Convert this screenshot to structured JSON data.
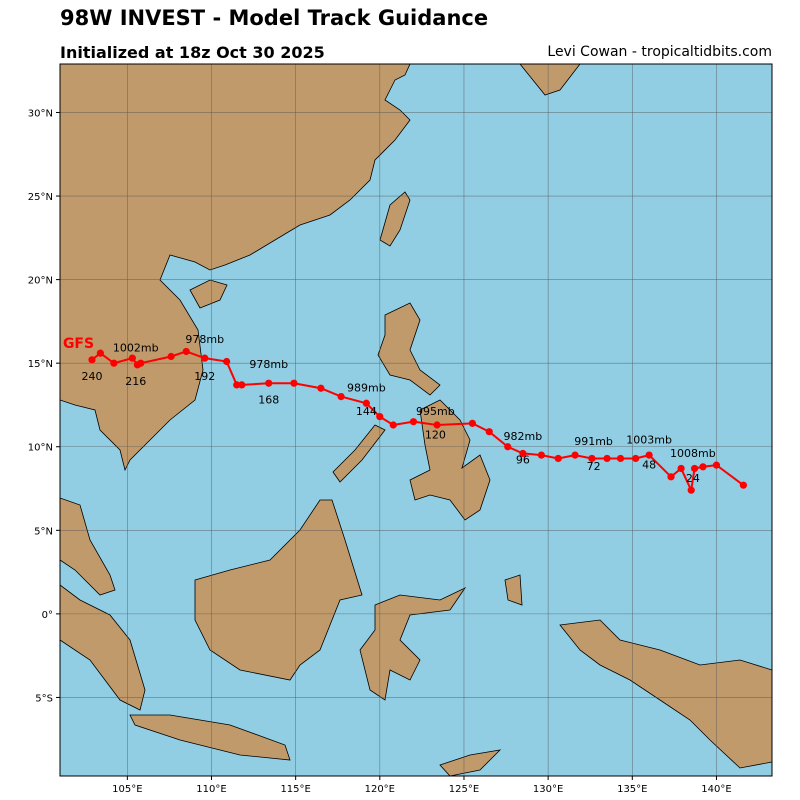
{
  "header": {
    "title": "98W INVEST - Model Track Guidance",
    "subtitle": "Initialized at 18z Oct 30 2025",
    "credit": "Levi Cowan - tropicaltidbits.com"
  },
  "map": {
    "lon_range": [
      101,
      143.3
    ],
    "lat_range": [
      -9.7,
      32.9
    ],
    "ocean_color": "#91cde3",
    "land_color": "#c09a6b",
    "grid": true,
    "lon_ticks": [
      {
        "v": 105,
        "t": "105°E"
      },
      {
        "v": 110,
        "t": "110°E"
      },
      {
        "v": 115,
        "t": "115°E"
      },
      {
        "v": 120,
        "t": "120°E"
      },
      {
        "v": 125,
        "t": "125°E"
      },
      {
        "v": 130,
        "t": "130°E"
      },
      {
        "v": 135,
        "t": "135°E"
      },
      {
        "v": 140,
        "t": "140°E"
      }
    ],
    "lat_ticks": [
      {
        "v": 30,
        "t": "30°N"
      },
      {
        "v": 25,
        "t": "25°N"
      },
      {
        "v": 20,
        "t": "20°N"
      },
      {
        "v": 15,
        "t": "15°N"
      },
      {
        "v": 10,
        "t": "10°N"
      },
      {
        "v": 5,
        "t": "5°N"
      },
      {
        "v": 0,
        "t": "0°"
      },
      {
        "v": -5,
        "t": "5°S"
      }
    ]
  },
  "track": {
    "model": "GFS",
    "color": "#ff0000",
    "points": [
      [
        141.6,
        7.7
      ],
      [
        140.0,
        8.9
      ],
      [
        139.2,
        8.8
      ],
      [
        138.7,
        8.7
      ],
      [
        138.5,
        7.4
      ],
      [
        137.9,
        8.7
      ],
      [
        137.3,
        8.2
      ],
      [
        136.0,
        9.5
      ],
      [
        135.2,
        9.3
      ],
      [
        134.3,
        9.3
      ],
      [
        133.5,
        9.3
      ],
      [
        132.6,
        9.3
      ],
      [
        131.6,
        9.5
      ],
      [
        130.6,
        9.3
      ],
      [
        129.6,
        9.5
      ],
      [
        128.5,
        9.6
      ],
      [
        127.6,
        10.0
      ],
      [
        126.5,
        10.9
      ],
      [
        125.5,
        11.4
      ],
      [
        123.4,
        11.3
      ],
      [
        122.0,
        11.5
      ],
      [
        120.8,
        11.3
      ],
      [
        120.0,
        11.8
      ],
      [
        119.2,
        12.6
      ],
      [
        117.7,
        13.0
      ],
      [
        116.5,
        13.5
      ],
      [
        114.9,
        13.8
      ],
      [
        113.4,
        13.8
      ],
      [
        111.8,
        13.7
      ],
      [
        111.5,
        13.7
      ],
      [
        110.9,
        15.1
      ],
      [
        109.6,
        15.3
      ],
      [
        108.5,
        15.7
      ],
      [
        107.6,
        15.4
      ],
      [
        105.8,
        15.0
      ],
      [
        105.6,
        14.9
      ],
      [
        105.3,
        15.3
      ],
      [
        104.2,
        15.0
      ],
      [
        103.4,
        15.6
      ],
      [
        102.9,
        15.2
      ]
    ],
    "hour_labels": [
      {
        "t": "24",
        "lon": 138.6,
        "lat": 7.9
      },
      {
        "t": "48",
        "lon": 136.0,
        "lat": 8.7
      },
      {
        "t": "72",
        "lon": 132.7,
        "lat": 8.6
      },
      {
        "t": "96",
        "lon": 128.5,
        "lat": 9.0
      },
      {
        "t": "120",
        "lon": 123.3,
        "lat": 10.5
      },
      {
        "t": "144",
        "lon": 119.2,
        "lat": 11.9
      },
      {
        "t": "168",
        "lon": 113.4,
        "lat": 12.6
      },
      {
        "t": "192",
        "lon": 109.6,
        "lat": 14.0
      },
      {
        "t": "216",
        "lon": 105.5,
        "lat": 13.7
      },
      {
        "t": "240",
        "lon": 102.9,
        "lat": 14.0
      }
    ],
    "pressure_labels": [
      {
        "t": "1008mb",
        "lon": 138.6,
        "lat": 9.4
      },
      {
        "t": "1003mb",
        "lon": 136.0,
        "lat": 10.2
      },
      {
        "t": "991mb",
        "lon": 132.7,
        "lat": 10.1
      },
      {
        "t": "982mb",
        "lon": 128.5,
        "lat": 10.4
      },
      {
        "t": "995mb",
        "lon": 123.3,
        "lat": 11.9
      },
      {
        "t": "989mb",
        "lon": 119.2,
        "lat": 13.3
      },
      {
        "t": "978mb",
        "lon": 113.4,
        "lat": 14.7
      },
      {
        "t": "978mb",
        "lon": 109.6,
        "lat": 16.2
      },
      {
        "t": "1002mb",
        "lon": 105.5,
        "lat": 15.7
      }
    ],
    "model_label": {
      "t": "GFS",
      "lon": 102.1,
      "lat": 15.9
    }
  }
}
